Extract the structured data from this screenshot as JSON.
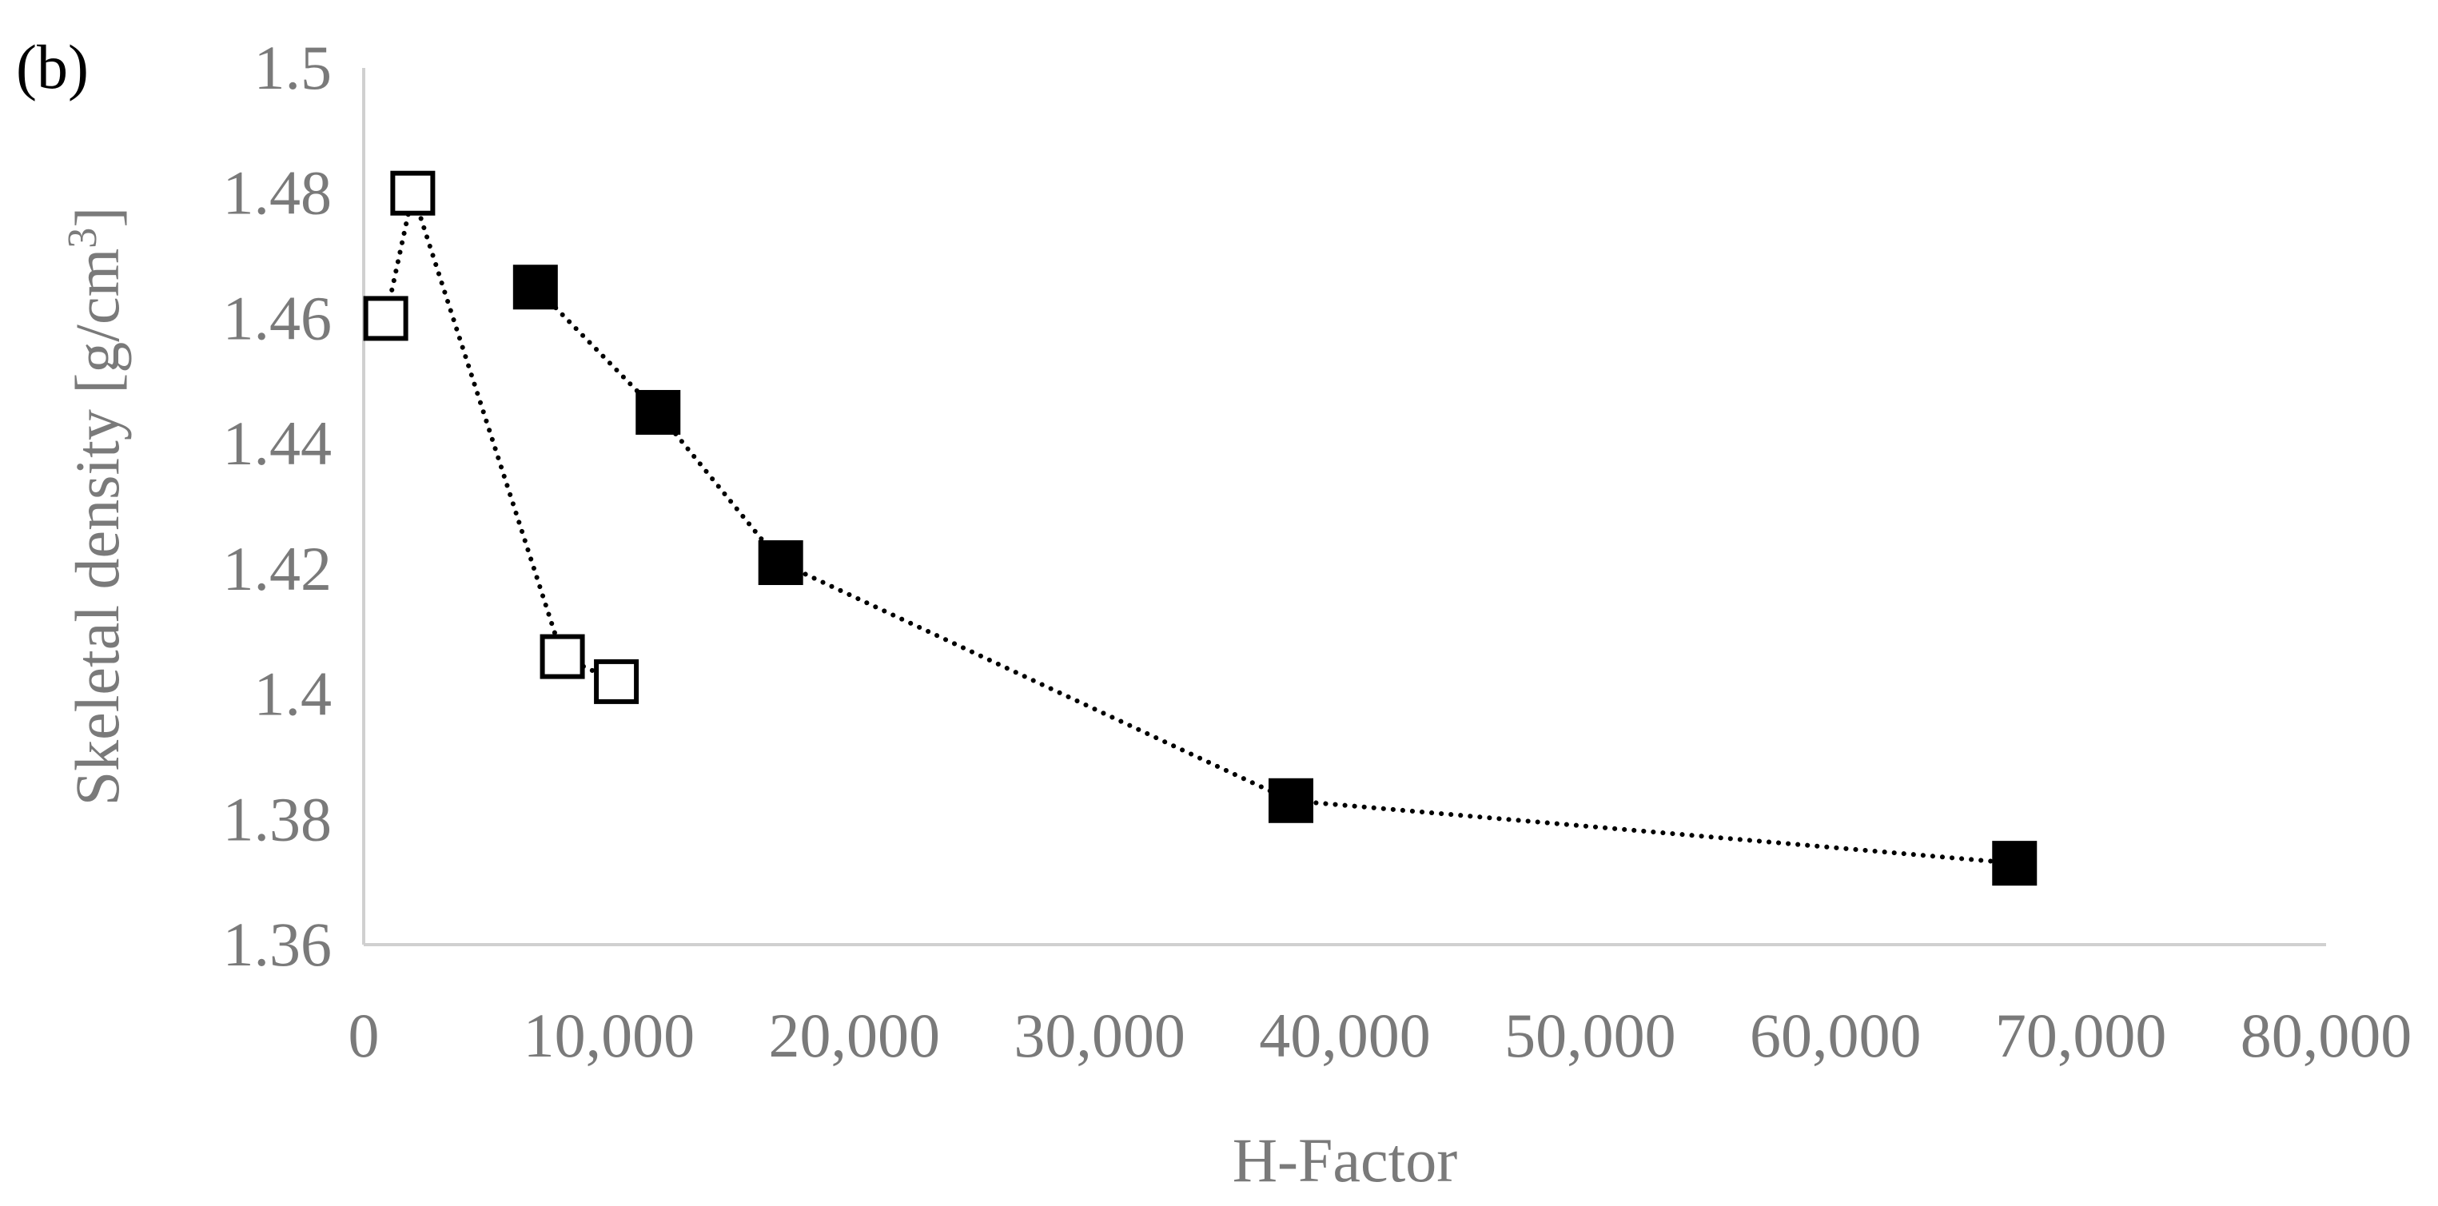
{
  "chart_data": {
    "type": "scatter",
    "panel_label": "(b)",
    "title": "",
    "xlabel": "H-Factor",
    "ylabel": "Skeletal density [g/cm3]",
    "ylabel_parts": {
      "main": "Skeletal density [g/cm",
      "superscript": "3",
      "close": "]"
    },
    "xlim": [
      0,
      80000
    ],
    "ylim": [
      1.36,
      1.5
    ],
    "x_ticks": [
      0,
      10000,
      20000,
      30000,
      40000,
      50000,
      60000,
      70000,
      80000
    ],
    "x_tick_labels": [
      "0",
      "10,000",
      "20,000",
      "30,000",
      "40,000",
      "50,000",
      "60,000",
      "70,000",
      "80,000"
    ],
    "y_ticks": [
      1.36,
      1.38,
      1.4,
      1.42,
      1.44,
      1.46,
      1.48,
      1.5
    ],
    "y_tick_labels": [
      "1.36",
      "1.38",
      "1.4",
      "1.42",
      "1.44",
      "1.46",
      "1.48",
      "1.5"
    ],
    "grid": false,
    "series": [
      {
        "marker": "square-open",
        "line": "dotted",
        "color": "#000000",
        "x": [
          900,
          2000,
          8100,
          10300
        ],
        "y": [
          1.46,
          1.48,
          1.406,
          1.402
        ]
      },
      {
        "marker": "square-filled",
        "line": "dotted",
        "color": "#000000",
        "x": [
          7000,
          12000,
          17000,
          37800,
          67300
        ],
        "y": [
          1.465,
          1.445,
          1.421,
          1.383,
          1.373
        ]
      }
    ]
  }
}
